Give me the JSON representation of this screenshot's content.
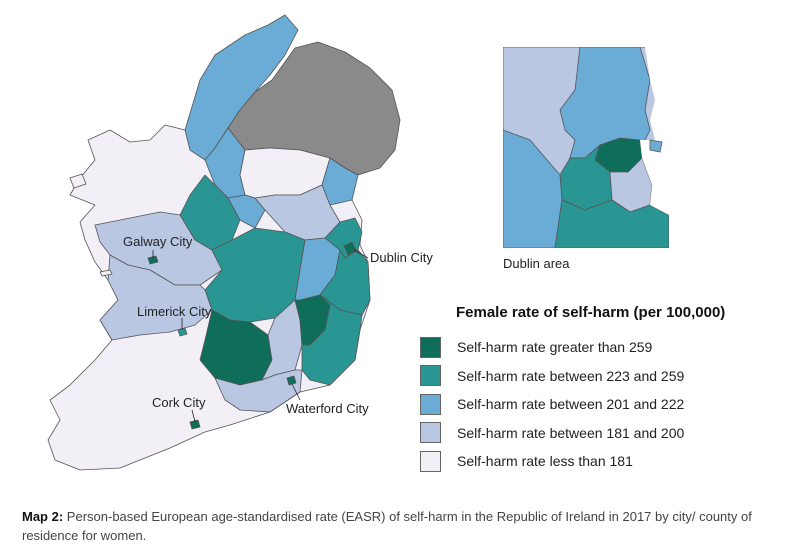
{
  "colors": {
    "gt259": "#0f6e5a",
    "c223_259": "#2a9693",
    "c201_222": "#6aacd6",
    "c181_200": "#b9c7e3",
    "lt181": "#f3eff7",
    "northern_ireland": "#8a8a8a",
    "border": "#555555"
  },
  "labels": {
    "galway_city": "Galway City",
    "limerick_city": "Limerick City",
    "cork_city": "Cork City",
    "waterford_city": "Waterford City",
    "dublin_city": "Dublin City",
    "dublin_area": "Dublin area"
  },
  "legend": {
    "title": "Female rate of self-harm (per 100,000)",
    "items": [
      {
        "label": "Self-harm rate greater than 259",
        "color": "#0f6e5a"
      },
      {
        "label": "Self-harm rate between 223 and 259",
        "color": "#2a9693"
      },
      {
        "label": "Self-harm rate between 201 and 222",
        "color": "#6aacd6"
      },
      {
        "label": "Self-harm rate between 181 and 200",
        "color": "#b9c7e3"
      },
      {
        "label": "Self-harm rate less than 181",
        "color": "#f3eff7"
      }
    ]
  },
  "caption": {
    "prefix": "Map 2:",
    "text": "Person-based European age-standardised rate (EASR) of self-harm in the Republic of Ireland in 2017 by city/ county of residence for women."
  }
}
